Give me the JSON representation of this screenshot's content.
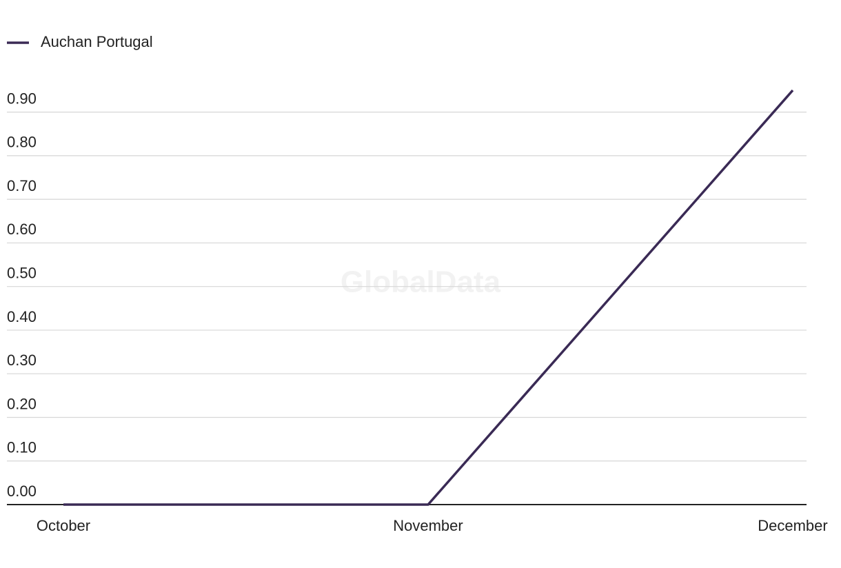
{
  "chart_data": {
    "type": "line",
    "categories": [
      "October",
      "November",
      "December"
    ],
    "series": [
      {
        "name": "Auchan Portugal",
        "color": "#3a2a55",
        "values": [
          0,
          0,
          0.95
        ]
      }
    ],
    "ylim": [
      0,
      0.95
    ],
    "yticks": [
      {
        "value": 0,
        "label": "0.00"
      },
      {
        "value": 0.1,
        "label": "0.10"
      },
      {
        "value": 0.2,
        "label": "0.20"
      },
      {
        "value": 0.3,
        "label": "0.30"
      },
      {
        "value": 0.4,
        "label": "0.40"
      },
      {
        "value": 0.5,
        "label": "0.50"
      },
      {
        "value": 0.6,
        "label": "0.60"
      },
      {
        "value": 0.7,
        "label": "0.70"
      },
      {
        "value": 0.8,
        "label": "0.80"
      },
      {
        "value": 0.9,
        "label": "0.90"
      }
    ],
    "grid": true,
    "legend": "top-left",
    "watermark": "GlobalData"
  }
}
